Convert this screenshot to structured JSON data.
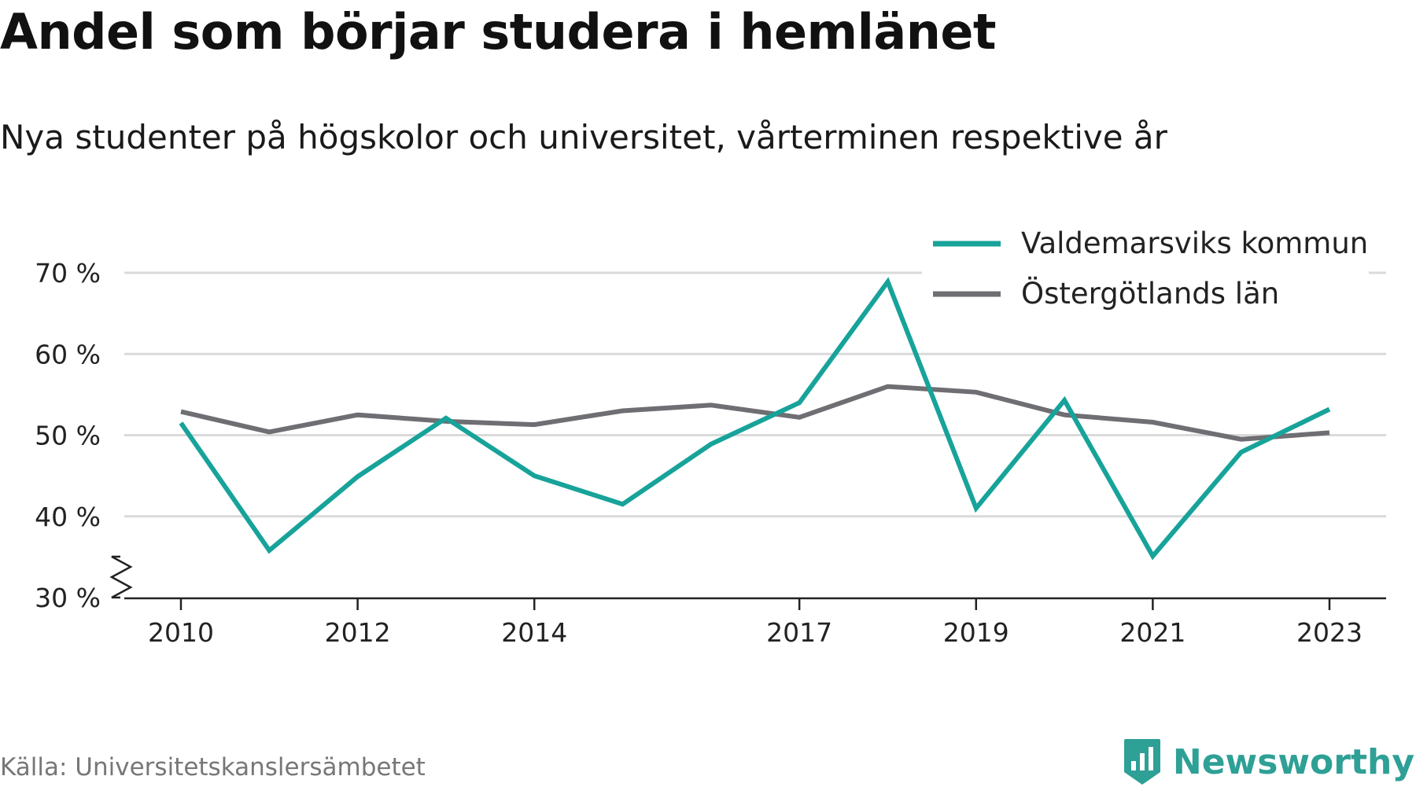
{
  "title": "Andel som börjar studera i hemlänet",
  "subtitle": "Nya studenter på högskolor och universitet, vårterminen respektive år",
  "source": "Källa: Universitetskanslersämbetet",
  "brand": {
    "name": "Newsworthy",
    "logo_icon": "newsworthy-bar-chart-icon",
    "color": "#2ea096"
  },
  "chart_data": {
    "type": "line",
    "x": [
      2010,
      2011,
      2012,
      2013,
      2014,
      2015,
      2016,
      2017,
      2018,
      2019,
      2020,
      2021,
      2022,
      2023
    ],
    "x_tick_values": [
      2010,
      2012,
      2014,
      2017,
      2019,
      2021,
      2023
    ],
    "x_tick_labels": [
      "2010",
      "2012",
      "2014",
      "2017",
      "2019",
      "2021",
      "2023"
    ],
    "ylim": [
      30,
      70
    ],
    "y_tick_values": [
      30,
      40,
      50,
      60,
      70
    ],
    "y_tick_labels": [
      "30 %",
      "40 %",
      "50 %",
      "60 %",
      "70 %"
    ],
    "y_axis_break": true,
    "grid": true,
    "legend_position": "top-right",
    "series": [
      {
        "name": "Valdemarsviks kommun",
        "color": "#17a39a",
        "values": [
          51.5,
          35.8,
          44.9,
          52.1,
          45.0,
          41.5,
          48.9,
          54.0,
          68.9,
          41.0,
          54.3,
          35.1,
          47.9,
          53.2
        ]
      },
      {
        "name": "Östergötlands län",
        "color": "#6f6e73",
        "values": [
          52.9,
          50.4,
          52.5,
          51.7,
          51.3,
          53.0,
          53.7,
          52.2,
          56.0,
          55.3,
          52.5,
          51.6,
          49.5,
          50.3
        ]
      }
    ]
  }
}
